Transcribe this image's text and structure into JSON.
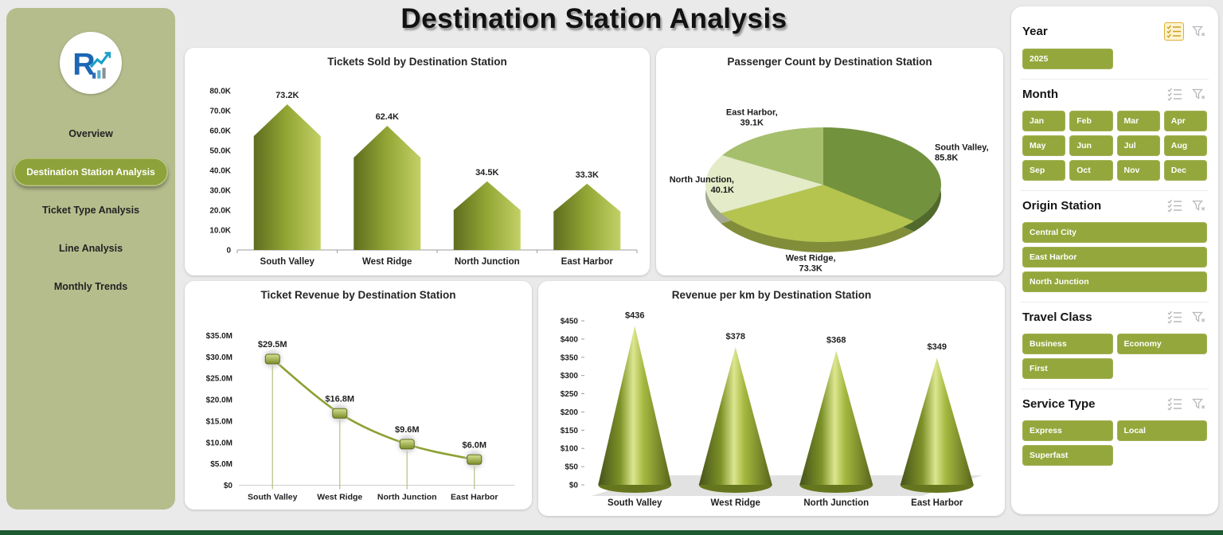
{
  "title": "Destination Station Analysis",
  "sidebar": {
    "logo_letter": "R",
    "items": [
      {
        "label": "Overview"
      },
      {
        "label": "Destination Station Analysis"
      },
      {
        "label": "Ticket Type Analysis"
      },
      {
        "label": "Line Analysis"
      },
      {
        "label": "Monthly Trends"
      }
    ]
  },
  "filters": {
    "year": {
      "label": "Year",
      "options": [
        "2025"
      ]
    },
    "month": {
      "label": "Month",
      "options": [
        "Jan",
        "Feb",
        "Mar",
        "Apr",
        "May",
        "Jun",
        "Jul",
        "Aug",
        "Sep",
        "Oct",
        "Nov",
        "Dec"
      ]
    },
    "origin_station": {
      "label": "Origin Station",
      "options": [
        "Central City",
        "East Harbor",
        "North Junction"
      ]
    },
    "travel_class": {
      "label": "Travel Class",
      "options": [
        "Business",
        "Economy",
        "First"
      ]
    },
    "service_type": {
      "label": "Service Type",
      "options": [
        "Express",
        "Local",
        "Superfast"
      ]
    }
  },
  "colors": {
    "accent": "#94a73c",
    "sidebar_bg": "#b6bd8d",
    "page_bg": "#eaeaea",
    "bottom_strip": "#1e5b33",
    "highlight_icon": "#cf9f26"
  },
  "chart_data": [
    {
      "type": "bar",
      "title": "Tickets Sold by Destination Station",
      "categories": [
        "South Valley",
        "West Ridge",
        "North Junction",
        "East Harbor"
      ],
      "values": [
        73200,
        62400,
        34500,
        33300
      ],
      "labels": [
        "73.2K",
        "62.4K",
        "34.5K",
        "33.3K"
      ],
      "ylim": [
        0,
        80000
      ],
      "yticks": [
        "0",
        "10.0K",
        "20.0K",
        "30.0K",
        "40.0K",
        "50.0K",
        "60.0K",
        "70.0K",
        "80.0K"
      ],
      "bar_gradient": [
        "#5e6d1e",
        "#93a735",
        "#c3d066"
      ]
    },
    {
      "type": "pie",
      "title": "Passenger Count by Destination Station",
      "categories": [
        "South Valley",
        "West Ridge",
        "North Junction",
        "East Harbor"
      ],
      "values": [
        85800,
        73300,
        40100,
        39100
      ],
      "labels": [
        "South Valley, 85.8K",
        "West Ridge, 73.3K",
        "North Junction, 40.1K",
        "East Harbor, 39.1K"
      ],
      "label_lines": [
        [
          "South Valley,",
          "85.8K"
        ],
        [
          "West Ridge,",
          "73.3K"
        ],
        [
          "North Junction,",
          "40.1K"
        ],
        [
          "East Harbor,",
          "39.1K"
        ]
      ],
      "slice_colors": [
        "#72923e",
        "#b5c44f",
        "#e3ebc8",
        "#a6bf6d"
      ]
    },
    {
      "type": "line",
      "title": "Ticket Revenue by Destination Station",
      "categories": [
        "South Valley",
        "West Ridge",
        "North Junction",
        "East Harbor"
      ],
      "values": [
        29500000,
        16800000,
        9600000,
        6000000
      ],
      "labels": [
        "$29.5M",
        "$16.8M",
        "$9.6M",
        "$6.0M"
      ],
      "ylim": [
        0,
        35000000
      ],
      "yticks": [
        "$0",
        "$5.0M",
        "$10.0M",
        "$15.0M",
        "$20.0M",
        "$25.0M",
        "$30.0M",
        "$35.0M"
      ],
      "line_color": "#8ba133",
      "marker_gradient": [
        "#d8e093",
        "#7a8d2a"
      ]
    },
    {
      "type": "cone",
      "title": "Revenue per km by Destination Station",
      "categories": [
        "South Valley",
        "West Ridge",
        "North Junction",
        "East Harbor"
      ],
      "values": [
        436,
        378,
        368,
        349
      ],
      "labels": [
        "$436",
        "$378",
        "$368",
        "$349"
      ],
      "ylim": [
        0,
        450
      ],
      "yticks": [
        "$0",
        "$50",
        "$100",
        "$150",
        "$200",
        "$250",
        "$300",
        "$350",
        "$400",
        "$450"
      ],
      "cone_gradient": [
        "#46521a",
        "#7d9128",
        "#dce68f",
        "#a5b83f",
        "#57641b"
      ]
    }
  ]
}
